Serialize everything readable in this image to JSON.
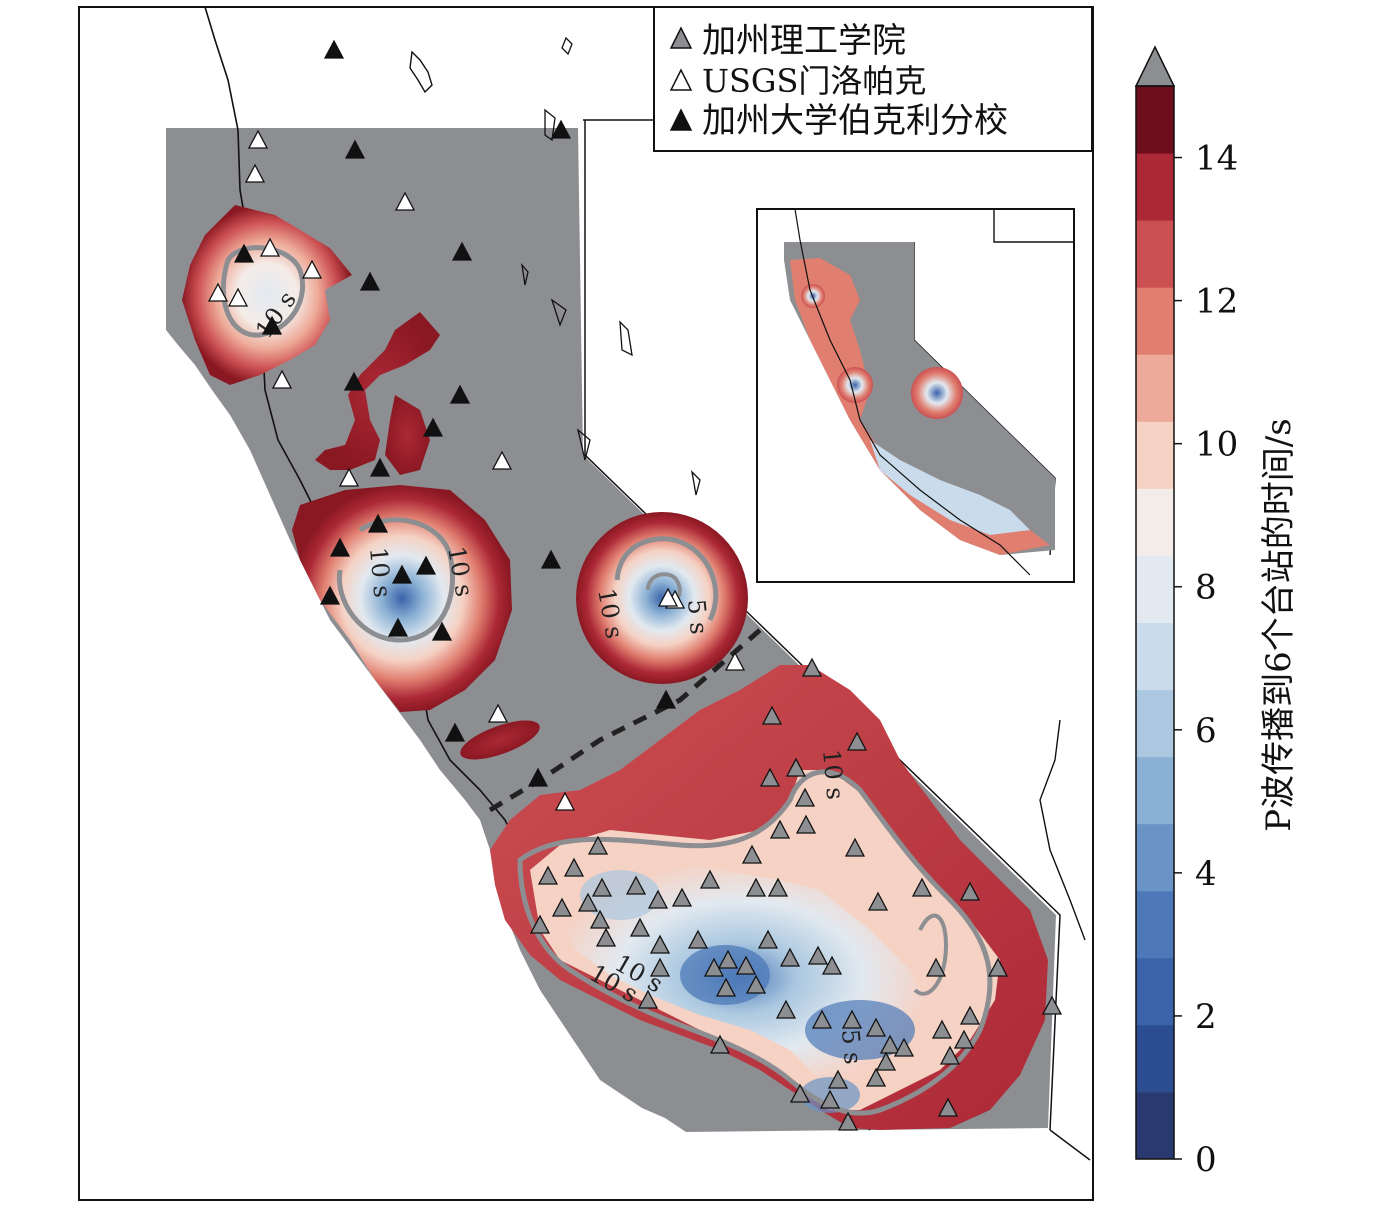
{
  "legend": {
    "items": [
      {
        "symbol": "gray-triangle",
        "label": "加州理工学院",
        "color": "#8d8e92"
      },
      {
        "symbol": "white-triangle",
        "label": "USGS门洛帕克",
        "color": "#ffffff"
      },
      {
        "symbol": "black-triangle",
        "label": "加州大学伯克利分校",
        "color": "#111111"
      }
    ]
  },
  "contour_labels": [
    "10 s",
    "10 s",
    "10 s",
    "10 s",
    "10 s",
    "10 s",
    "10 s",
    "5 s",
    "5 s"
  ],
  "colorbar": {
    "title": "P波传播到6个台站的时间/s",
    "min": 0,
    "max": 15,
    "ticks": [
      {
        "value": 0,
        "label": "0"
      },
      {
        "value": 2,
        "label": "2"
      },
      {
        "value": 4,
        "label": "4"
      },
      {
        "value": 6,
        "label": "6"
      },
      {
        "value": 8,
        "label": "8"
      },
      {
        "value": 10,
        "label": "10"
      },
      {
        "value": 12,
        "label": "12"
      },
      {
        "value": 14,
        "label": "14"
      }
    ],
    "overflow_color": "#8d8e92",
    "colors": [
      "#2a3a70",
      "#2c4d92",
      "#3a63aa",
      "#4d79b8",
      "#6a94c6",
      "#8ab0d4",
      "#abc8e0",
      "#cadbeb",
      "#e2e9f0",
      "#f4ece8",
      "#f5d2c4",
      "#eeaa98",
      "#e07e70",
      "#cc5052",
      "#ac2836",
      "#6e0e1c"
    ]
  },
  "map": {
    "background_color": "#8d8e92",
    "stations": {
      "gray": "many",
      "white": "several",
      "black": "several"
    }
  }
}
